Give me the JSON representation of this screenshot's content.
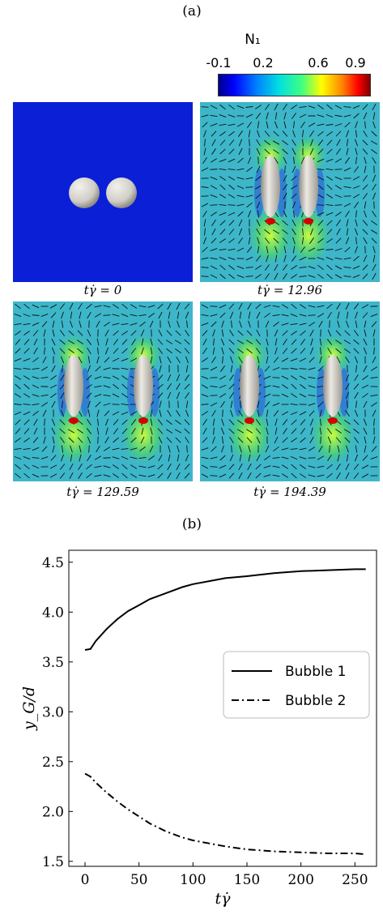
{
  "figure": {
    "label_a": "(a)",
    "label_b": "(b)",
    "colorbar": {
      "title": "N₁",
      "ticks": [
        "-0.1",
        "0.2",
        "0.6",
        "0.9"
      ]
    },
    "panels": [
      {
        "caption": "tγ̇ = 0",
        "state": "initial"
      },
      {
        "caption": "tγ̇ = 12.96",
        "state": "deformed"
      },
      {
        "caption": "tγ̇ = 129.59",
        "state": "deformed"
      },
      {
        "caption": "tγ̇ = 194.39",
        "state": "deformed"
      }
    ],
    "colors": {
      "background_field": "#0a1fd6",
      "stress_field": "#3db6c9",
      "bubble": "#d8d6cf"
    }
  },
  "chart_data": {
    "type": "line",
    "xlabel": "tγ̇",
    "ylabel": "y_G/d",
    "xlim": [
      -15,
      270
    ],
    "ylim": [
      1.45,
      4.62
    ],
    "xticks": [
      0,
      50,
      100,
      150,
      200,
      250
    ],
    "yticks": [
      1.5,
      2.0,
      2.5,
      3.0,
      3.5,
      4.0,
      4.5
    ],
    "xtick_labels": [
      "0",
      "50",
      "100",
      "150",
      "200",
      "250"
    ],
    "ytick_labels": [
      "1.5",
      "2.0",
      "2.5",
      "3.0",
      "3.5",
      "4.0",
      "4.5"
    ],
    "legend_position": "center-right",
    "series": [
      {
        "name": "Bubble 1",
        "style": "solid",
        "x": [
          0,
          5,
          10,
          20,
          30,
          40,
          50,
          60,
          75,
          90,
          100,
          115,
          130,
          150,
          175,
          200,
          225,
          250,
          260
        ],
        "y": [
          3.62,
          3.63,
          3.71,
          3.83,
          3.93,
          4.01,
          4.07,
          4.13,
          4.19,
          4.25,
          4.28,
          4.31,
          4.34,
          4.36,
          4.39,
          4.41,
          4.42,
          4.43,
          4.43
        ]
      },
      {
        "name": "Bubble 2",
        "style": "dashdot",
        "x": [
          0,
          5,
          10,
          20,
          30,
          40,
          50,
          60,
          75,
          90,
          100,
          115,
          130,
          150,
          175,
          200,
          225,
          250,
          260
        ],
        "y": [
          2.38,
          2.35,
          2.29,
          2.19,
          2.1,
          2.02,
          1.95,
          1.88,
          1.8,
          1.74,
          1.71,
          1.68,
          1.65,
          1.62,
          1.6,
          1.59,
          1.58,
          1.58,
          1.57
        ]
      }
    ]
  }
}
